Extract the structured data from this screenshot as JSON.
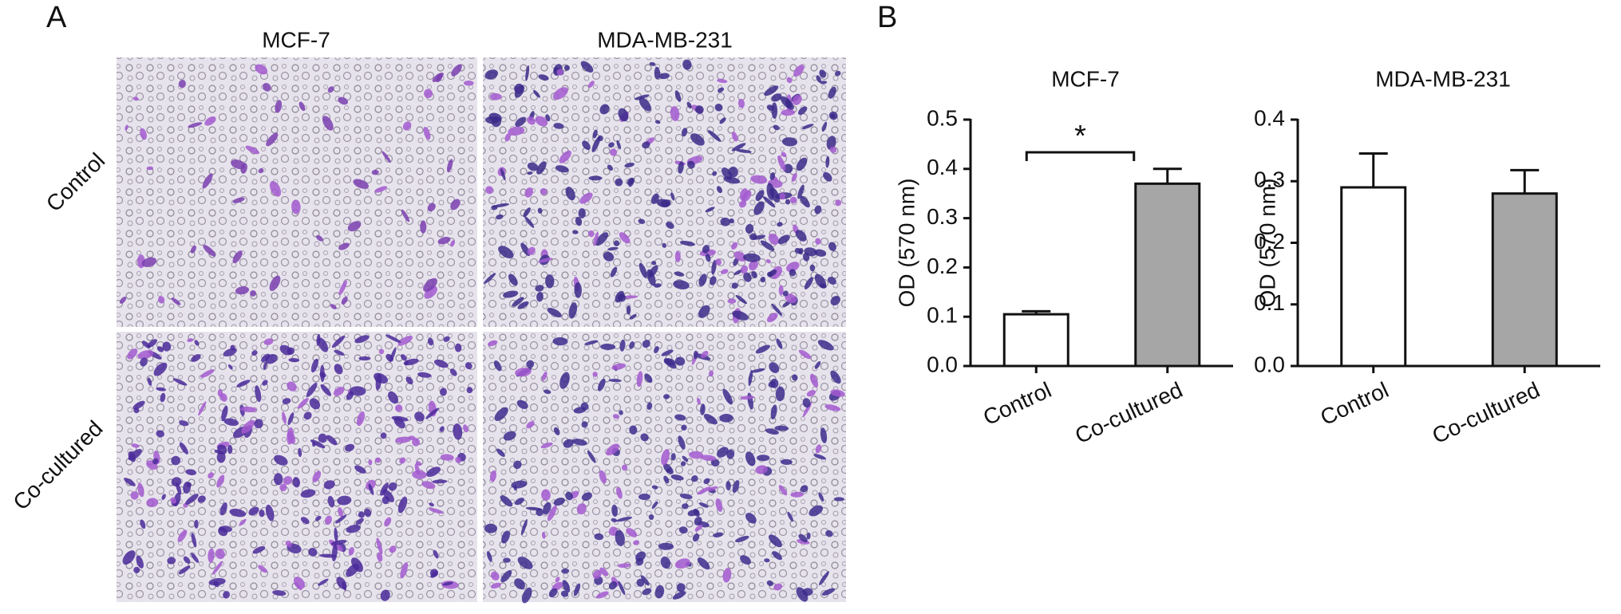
{
  "panel_a": {
    "label": "A",
    "columns": [
      "MCF-7",
      "MDA-MB-231"
    ],
    "rows": [
      "Control",
      "Co-cultured"
    ]
  },
  "panel_b": {
    "label": "B"
  },
  "chart_data": [
    {
      "type": "bar",
      "title": "MCF-7",
      "y_label": "OD (570 nm)",
      "categories": [
        "Control",
        "Co-cultured"
      ],
      "values": [
        0.105,
        0.37
      ],
      "errors": [
        0.006,
        0.03
      ],
      "colors": [
        "#ffffff",
        "#a6a6a6"
      ],
      "annotation": "*",
      "ylim": [
        0,
        0.5
      ],
      "yticks": [
        {
          "value": 0,
          "label": "0.0"
        },
        0.1,
        0.2,
        0.3,
        0.4,
        0.5
      ]
    },
    {
      "type": "bar",
      "title": "MDA-MB-231",
      "y_label": "OD (570 nm)",
      "categories": [
        "Control",
        "Co-cultured"
      ],
      "values": [
        0.29,
        0.28
      ],
      "errors": [
        0.055,
        0.038
      ],
      "colors": [
        "#ffffff",
        "#a6a6a6"
      ],
      "ylim": [
        0,
        0.4
      ],
      "yticks": [
        {
          "value": 0,
          "label": "0.0"
        },
        0.1,
        0.2,
        0.3,
        0.4
      ]
    }
  ]
}
